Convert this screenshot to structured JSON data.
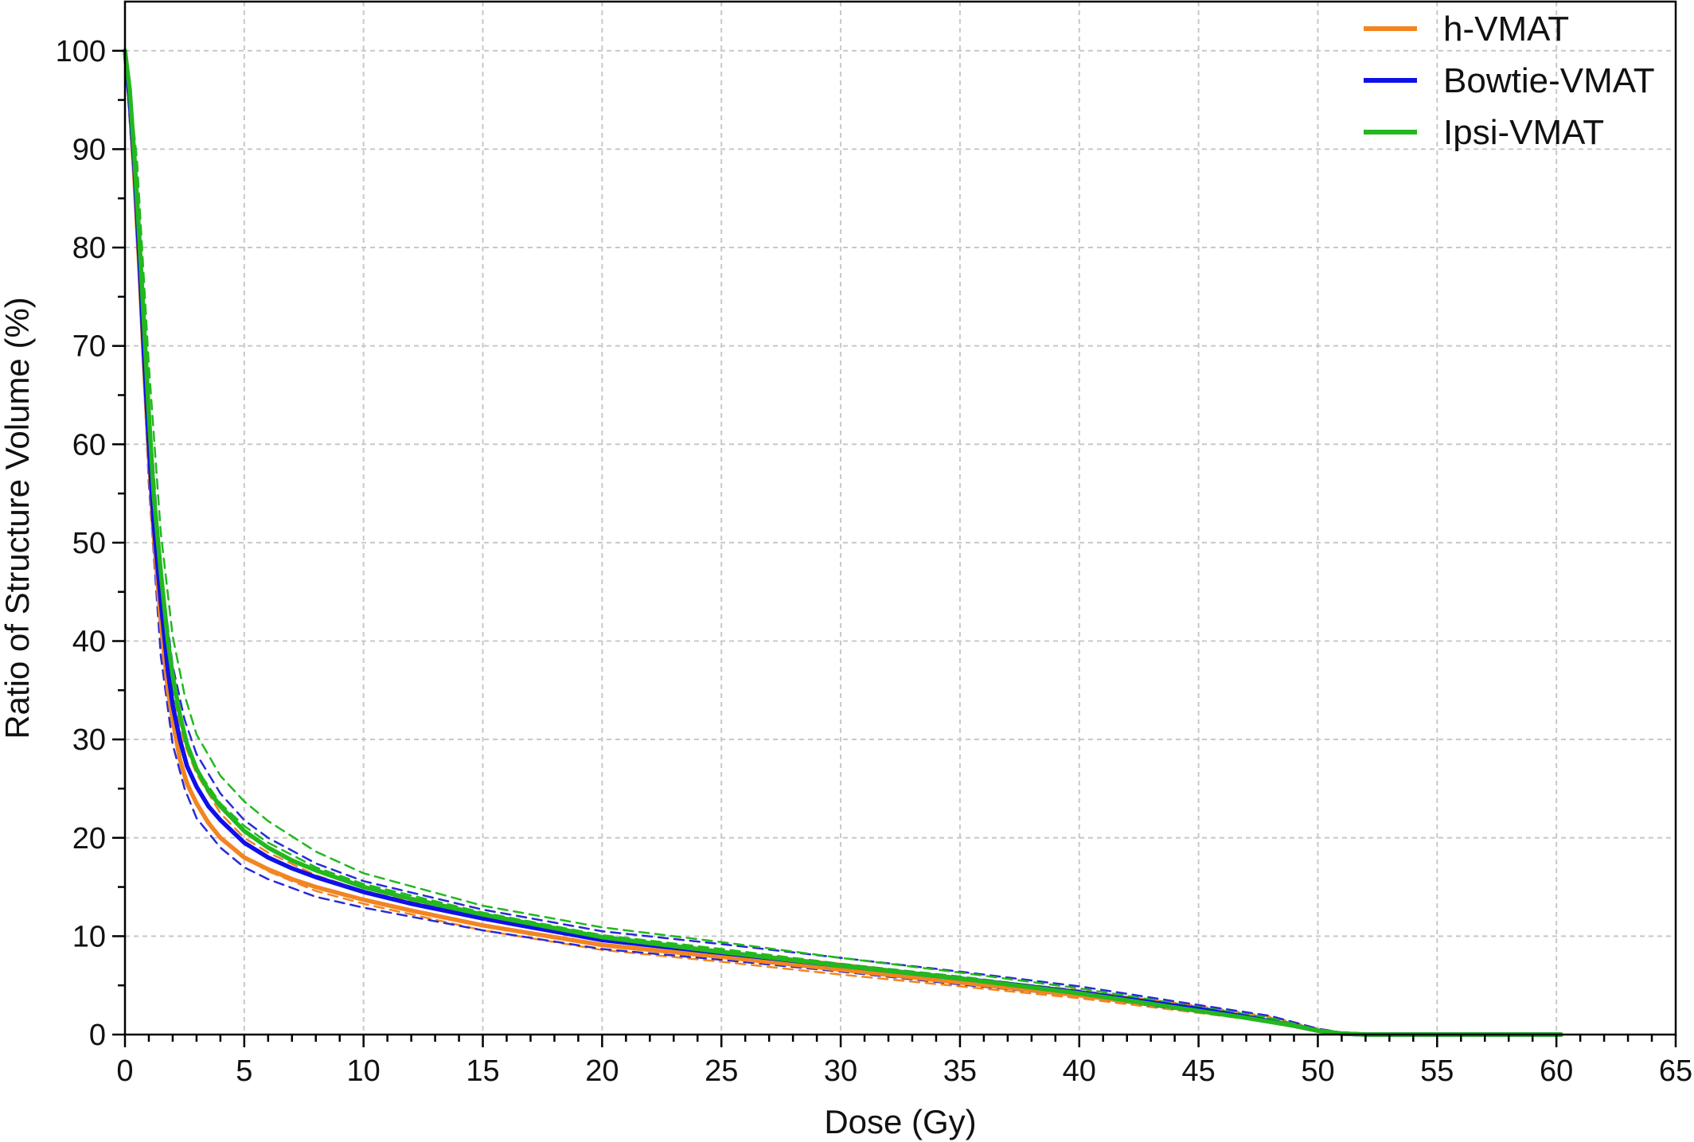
{
  "chart_data": {
    "type": "line",
    "title": "",
    "xlabel": "Dose (Gy)",
    "ylabel": "Ratio of Structure Volume (%)",
    "xlim": [
      0,
      65
    ],
    "ylim": [
      0,
      105
    ],
    "x_ticks": [
      "0",
      "5",
      "10",
      "15",
      "20",
      "25",
      "30",
      "35",
      "40",
      "45",
      "50",
      "55",
      "60",
      "65"
    ],
    "y_ticks": [
      "0",
      "10",
      "20",
      "30",
      "40",
      "50",
      "60",
      "70",
      "80",
      "90",
      "100"
    ],
    "grid": true,
    "legend_position": "top-right",
    "series": [
      {
        "name": "h-VMAT",
        "color": "#f28522",
        "style": "solid",
        "x": [
          0,
          0.2,
          0.4,
          0.6,
          0.8,
          1,
          1.2,
          1.5,
          1.8,
          2,
          2.3,
          2.6,
          3,
          3.5,
          4,
          5,
          6,
          7,
          8,
          10,
          12,
          15,
          20,
          25,
          30,
          35,
          40,
          45,
          47,
          49,
          50,
          51,
          52,
          55,
          60,
          60.2
        ],
        "y": [
          100,
          95,
          87,
          78,
          68,
          59,
          51,
          42,
          35,
          32,
          28,
          25.5,
          23.5,
          21.5,
          20,
          18,
          16.8,
          15.8,
          15,
          13.7,
          12.6,
          11.1,
          9.1,
          7.9,
          6.6,
          5.3,
          4,
          2.5,
          1.8,
          0.9,
          0.4,
          0.1,
          0,
          0,
          0,
          0
        ]
      },
      {
        "name": "Bowtie-VMAT",
        "color": "#1010e8",
        "style": "solid",
        "x": [
          0,
          0.2,
          0.4,
          0.6,
          0.8,
          1,
          1.2,
          1.5,
          1.8,
          2,
          2.3,
          2.6,
          3,
          3.5,
          4,
          5,
          6,
          7,
          8,
          10,
          12,
          15,
          20,
          25,
          30,
          35,
          40,
          45,
          47,
          49,
          50,
          51,
          52,
          55,
          60,
          60.2
        ],
        "y": [
          100,
          95,
          88,
          79,
          69,
          60,
          52,
          44,
          37,
          33.5,
          30,
          27.3,
          25.2,
          23.2,
          21.8,
          19.5,
          18,
          16.9,
          16,
          14.5,
          13.3,
          11.8,
          9.6,
          8.3,
          7,
          5.7,
          4.3,
          2.6,
          1.8,
          0.9,
          0.4,
          0.1,
          0,
          0,
          0,
          0
        ]
      },
      {
        "name": "Ipsi-VMAT",
        "color": "#22b81e",
        "style": "solid",
        "x": [
          0,
          0.2,
          0.4,
          0.6,
          0.8,
          1,
          1.2,
          1.5,
          1.8,
          2,
          2.3,
          2.6,
          3,
          3.5,
          4,
          5,
          6,
          7,
          8,
          10,
          12,
          15,
          20,
          25,
          30,
          35,
          40,
          45,
          47,
          49,
          50,
          51,
          52,
          55,
          60,
          60.2
        ],
        "y": [
          100,
          96,
          89,
          81,
          72,
          63,
          55,
          47,
          40,
          36.5,
          32.5,
          29.5,
          27,
          24.8,
          23.2,
          20.7,
          19,
          17.7,
          16.7,
          15,
          13.8,
          12.2,
          9.9,
          8.4,
          7,
          5.7,
          4.2,
          2.4,
          1.7,
          0.9,
          0.4,
          0.1,
          0,
          0,
          0,
          0
        ]
      },
      {
        "name": "",
        "color": "#f28522",
        "style": "dashed",
        "x": [
          0,
          0.5,
          1,
          1.5,
          2,
          2.5,
          3,
          4,
          5,
          6,
          8,
          10,
          15,
          20,
          25,
          30,
          35,
          40,
          45,
          48,
          50,
          51,
          52
        ],
        "y": [
          100,
          83,
          58,
          40,
          31,
          26.5,
          23.5,
          20,
          18,
          16.6,
          14.6,
          13.3,
          10.6,
          8.6,
          7.4,
          6.1,
          4.9,
          3.7,
          2.2,
          1.3,
          0.4,
          0.1,
          0
        ]
      },
      {
        "name": "",
        "color": "#f28522",
        "style": "dashed",
        "x": [
          0,
          0.5,
          1,
          1.5,
          2,
          2.5,
          3,
          4,
          5,
          6,
          8,
          10,
          15,
          20,
          25,
          30,
          35,
          40,
          45,
          48,
          50,
          51,
          52
        ],
        "y": [
          100,
          85,
          61,
          44,
          34.5,
          29.5,
          26.5,
          22.5,
          20,
          18.5,
          16.2,
          14.6,
          11.9,
          9.7,
          8.5,
          7.2,
          5.8,
          4.5,
          2.9,
          1.8,
          0.6,
          0.2,
          0
        ]
      },
      {
        "name": "",
        "color": "#2a2ad6",
        "style": "dashed",
        "x": [
          0,
          0.5,
          1,
          1.5,
          2,
          2.5,
          3,
          4,
          5,
          6,
          8,
          10,
          15,
          20,
          25,
          30,
          35,
          40,
          45,
          48,
          50,
          51,
          52
        ],
        "y": [
          100,
          82,
          56,
          38.5,
          29.5,
          25,
          22,
          19,
          17,
          15.8,
          14,
          12.9,
          10.6,
          8.7,
          7.6,
          6.4,
          5.1,
          3.9,
          2.3,
          1.4,
          0.4,
          0.1,
          0
        ]
      },
      {
        "name": "",
        "color": "#2a2ad6",
        "style": "dashed",
        "x": [
          0,
          0.5,
          1,
          1.5,
          2,
          2.5,
          3,
          4,
          5,
          6,
          8,
          10,
          15,
          20,
          25,
          30,
          35,
          40,
          45,
          48,
          50,
          51,
          52
        ],
        "y": [
          100,
          87,
          64,
          47,
          37.5,
          32,
          28.5,
          24.5,
          21.8,
          20,
          17.4,
          15.6,
          12.7,
          10.5,
          9.2,
          7.8,
          6.4,
          4.9,
          3,
          1.9,
          0.6,
          0.2,
          0
        ]
      },
      {
        "name": "",
        "color": "#22b81e",
        "style": "dashed",
        "x": [
          0,
          0.5,
          1,
          1.5,
          2,
          2.5,
          3,
          4,
          5,
          6,
          8,
          10,
          15,
          20,
          25,
          30,
          35,
          40,
          45,
          48,
          50,
          51,
          52
        ],
        "y": [
          100,
          85,
          61,
          44,
          35,
          30,
          27,
          23.5,
          21.2,
          19.5,
          17,
          15.3,
          12.4,
          10.1,
          8.7,
          7.2,
          5.9,
          4.4,
          2.6,
          1.6,
          0.5,
          0.1,
          0
        ]
      },
      {
        "name": "",
        "color": "#22b81e",
        "style": "dashed",
        "x": [
          0,
          0.5,
          1,
          1.5,
          2,
          2.5,
          3,
          4,
          5,
          6,
          8,
          10,
          15,
          20,
          25,
          30,
          35,
          40,
          45,
          48,
          50,
          51,
          52
        ],
        "y": [
          100,
          89,
          68,
          51,
          40.5,
          34.5,
          30.5,
          26.3,
          23.7,
          21.7,
          18.6,
          16.4,
          13.1,
          10.9,
          9.4,
          7.8,
          6.3,
          4.7,
          2.8,
          1.7,
          0.5,
          0.1,
          0
        ]
      }
    ]
  }
}
